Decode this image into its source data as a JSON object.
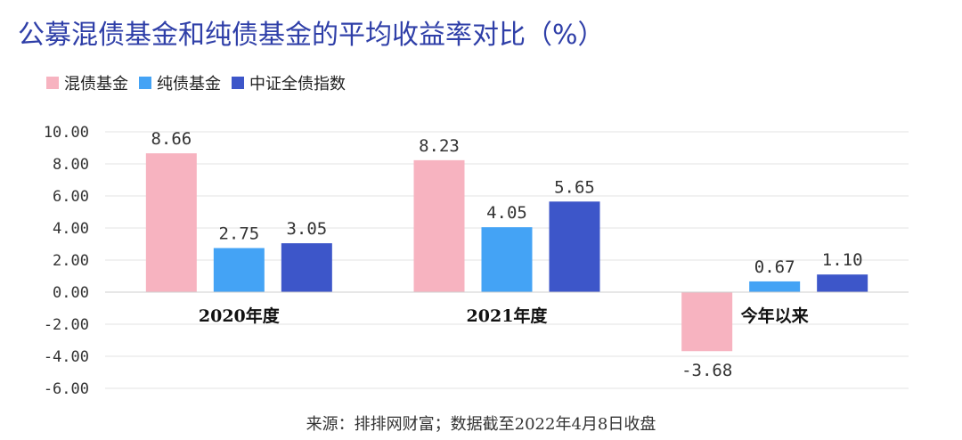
{
  "chart_data": {
    "type": "bar",
    "title": "公募混债基金和纯债基金的平均收益率对比（%）",
    "categories": [
      "2020年度",
      "2021年度",
      "今年以来"
    ],
    "series": [
      {
        "name": "混债基金",
        "color": "#f7b3c0",
        "values": [
          8.66,
          8.23,
          -3.68
        ],
        "labels": [
          "8.66",
          "8.23",
          "-3.68"
        ]
      },
      {
        "name": "纯债基金",
        "color": "#44a3f5",
        "values": [
          2.75,
          4.05,
          0.67
        ],
        "labels": [
          "2.75",
          "4.05",
          "0.67"
        ]
      },
      {
        "name": "中证全债指数",
        "color": "#3d56c9",
        "values": [
          3.05,
          5.65,
          1.1
        ],
        "labels": [
          "3.05",
          "5.65",
          "1.10"
        ]
      }
    ],
    "ylim": [
      -6,
      10
    ],
    "yticks": [
      "10.00",
      "8.00",
      "6.00",
      "4.00",
      "2.00",
      "0.00",
      "-2.00",
      "-4.00",
      "-6.00"
    ],
    "ytick_values": [
      10,
      8,
      6,
      4,
      2,
      0,
      -2,
      -4,
      -6
    ],
    "xlabel": "",
    "ylabel": "",
    "grid": true,
    "legend_position": "top-left"
  },
  "source": "来源：排排网财富；数据截至2022年4月8日收盘"
}
